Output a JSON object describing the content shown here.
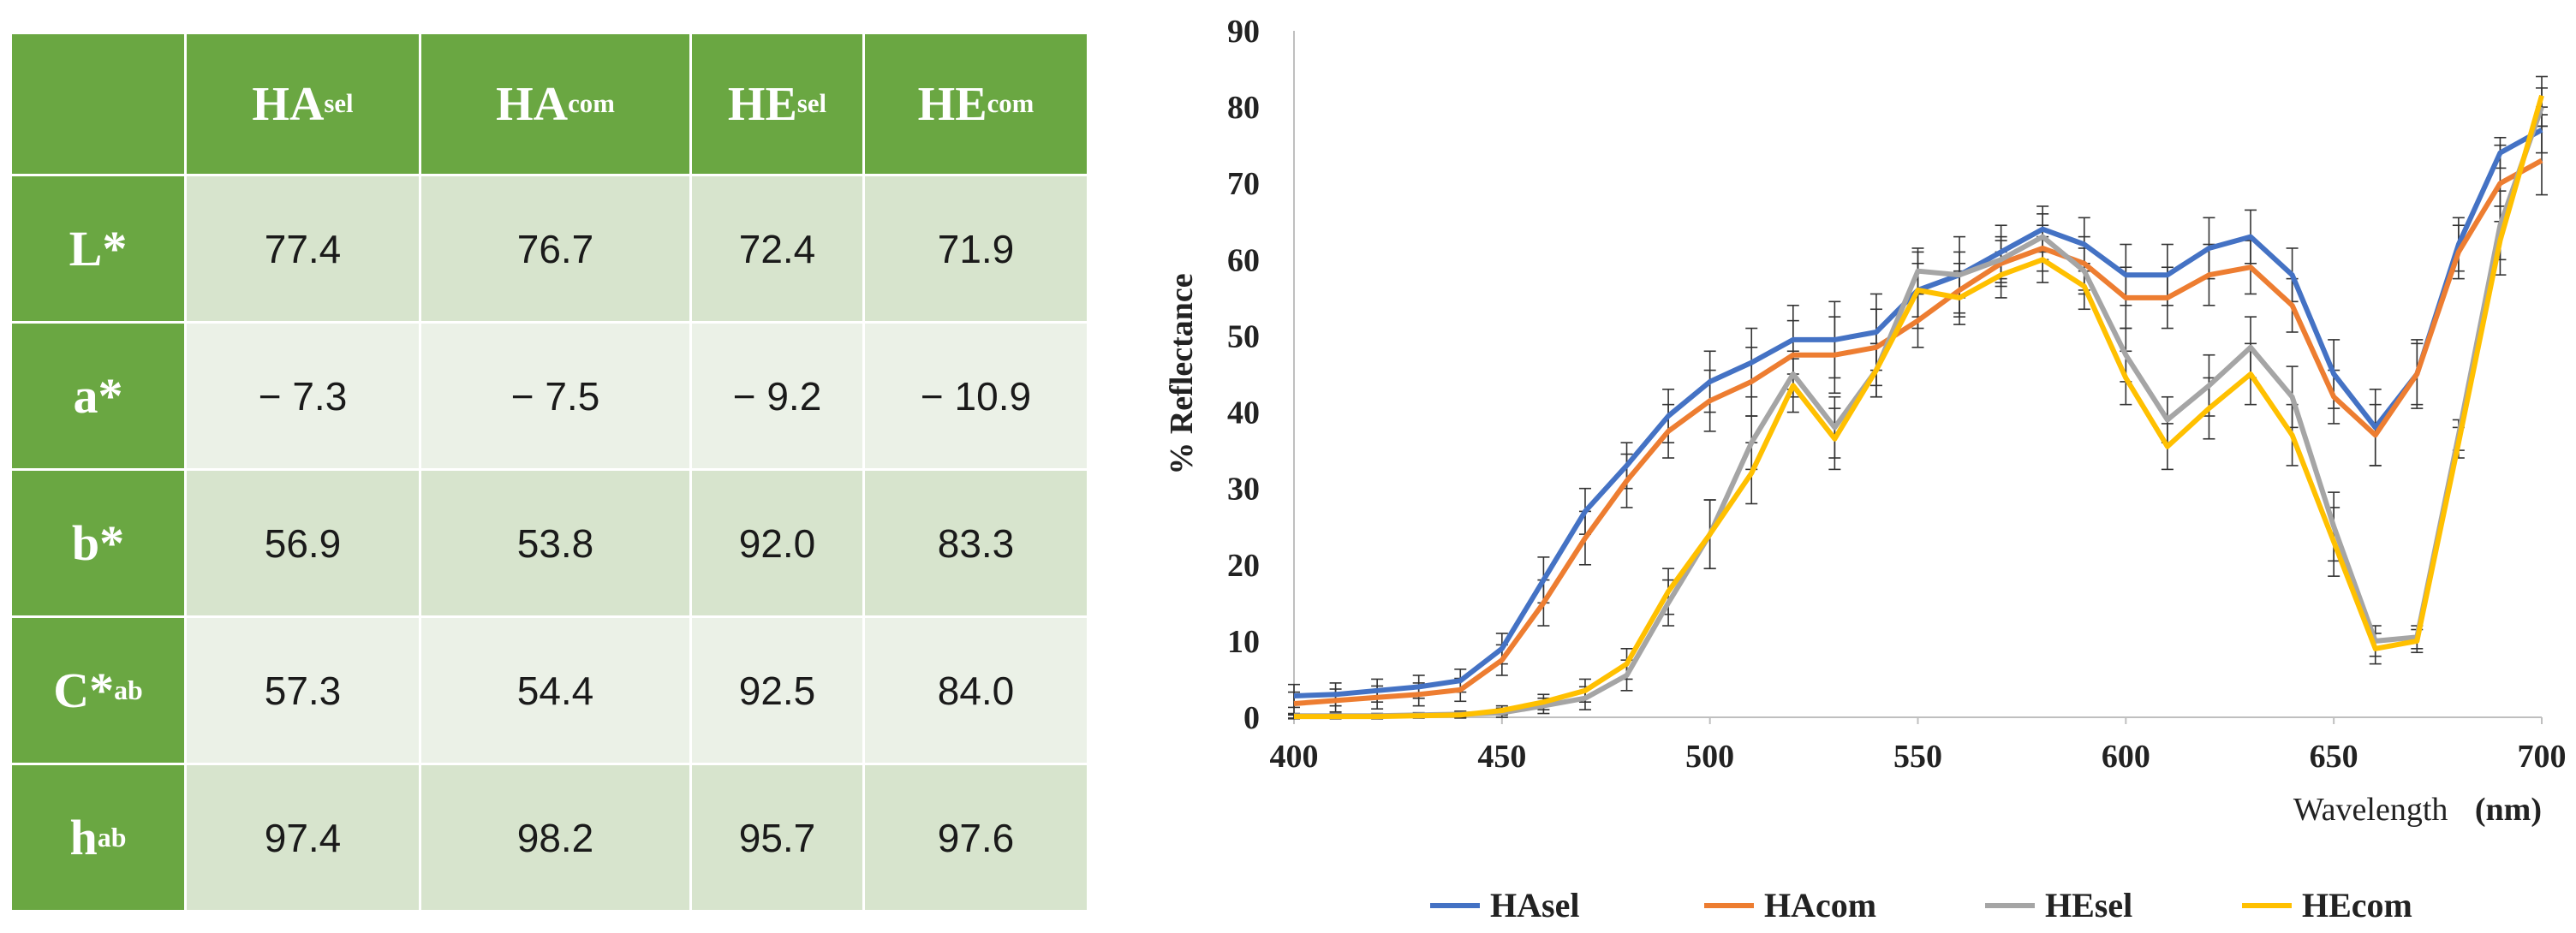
{
  "table": {
    "headers": [
      {
        "main": "HA",
        "sub": "sel"
      },
      {
        "main": "HA",
        "sub": "com"
      },
      {
        "main": "HE",
        "sub": "sel"
      },
      {
        "main": "HE",
        "sub": "com"
      }
    ],
    "rows": [
      {
        "main": "L*",
        "sub": "",
        "values": [
          "77.4",
          "76.7",
          "72.4",
          "71.9"
        ]
      },
      {
        "main": "a*",
        "sub": "",
        "values": [
          "− 7.3",
          "− 7.5",
          "− 9.2",
          "− 10.9"
        ]
      },
      {
        "main": "b*",
        "sub": "",
        "values": [
          "56.9",
          "53.8",
          "92.0",
          "83.3"
        ]
      },
      {
        "main": "C*",
        "sub": "ab",
        "values": [
          "57.3",
          "54.4",
          "92.5",
          "84.0"
        ]
      },
      {
        "main": "h",
        "sub": "ab",
        "values": [
          "97.4",
          "98.2",
          "95.7",
          "97.6"
        ]
      }
    ]
  },
  "chart_data": {
    "type": "line",
    "title": "",
    "xlabel": "Wavelength",
    "xlabel_unit": "(nm)",
    "ylabel": "% Reflectance",
    "xlim": [
      400,
      700
    ],
    "ylim": [
      0,
      90
    ],
    "xticks": [
      400,
      450,
      500,
      550,
      600,
      650,
      700
    ],
    "yticks": [
      0,
      10,
      20,
      30,
      40,
      50,
      60,
      70,
      80,
      90
    ],
    "x": [
      400,
      410,
      420,
      430,
      440,
      450,
      460,
      470,
      480,
      490,
      500,
      510,
      520,
      530,
      540,
      550,
      560,
      570,
      580,
      590,
      600,
      610,
      620,
      630,
      640,
      650,
      660,
      670,
      680,
      690,
      700
    ],
    "series": [
      {
        "name": "HAsel",
        "color": "#4472c4",
        "values": [
          2.8,
          3.0,
          3.5,
          4.0,
          4.8,
          9.0,
          18.0,
          27.0,
          33.0,
          39.5,
          44.0,
          46.5,
          49.5,
          49.5,
          50.5,
          56.0,
          58.0,
          61.0,
          64.0,
          62.0,
          58.0,
          58.0,
          61.5,
          63.0,
          58.0,
          45.0,
          38.0,
          45.0,
          62.0,
          74.0,
          77.0
        ],
        "errors": [
          1.5,
          1.5,
          1.5,
          1.5,
          1.5,
          2.0,
          3.0,
          3.0,
          3.0,
          3.5,
          4.0,
          4.5,
          4.5,
          5.0,
          5.0,
          5.0,
          5.0,
          3.5,
          3.0,
          3.5,
          4.0,
          4.0,
          4.0,
          3.5,
          3.5,
          4.5,
          5.0,
          4.5,
          3.5,
          2.0,
          3.0
        ]
      },
      {
        "name": "HAcom",
        "color": "#ed7d31",
        "values": [
          1.8,
          2.2,
          2.6,
          3.0,
          3.6,
          7.5,
          15.0,
          23.5,
          31.0,
          37.5,
          41.5,
          44.0,
          47.5,
          47.5,
          48.5,
          52.0,
          56.0,
          59.5,
          61.5,
          59.5,
          55.0,
          55.0,
          58.0,
          59.0,
          54.0,
          42.0,
          37.0,
          45.0,
          61.0,
          70.0,
          73.0
        ],
        "errors": [
          1.5,
          1.5,
          1.5,
          1.5,
          1.5,
          2.0,
          3.0,
          3.5,
          3.5,
          3.5,
          4.0,
          4.5,
          4.5,
          5.0,
          5.0,
          3.5,
          3.5,
          3.0,
          3.0,
          3.5,
          4.0,
          4.0,
          4.0,
          3.5,
          3.5,
          3.5,
          4.0,
          4.0,
          3.5,
          5.0,
          4.5
        ]
      },
      {
        "name": "HEsel",
        "color": "#a5a5a5",
        "values": [
          0.2,
          0.2,
          0.2,
          0.3,
          0.4,
          0.6,
          1.5,
          2.5,
          5.5,
          15.0,
          24.0,
          36.0,
          45.0,
          38.0,
          45.5,
          58.5,
          58.0,
          60.0,
          63.0,
          58.5,
          47.5,
          39.0,
          43.5,
          48.5,
          42.0,
          25.0,
          10.0,
          10.5,
          37.0,
          64.5,
          80.0
        ],
        "errors": [
          0.3,
          0.3,
          0.3,
          0.3,
          0.4,
          0.6,
          1.0,
          1.5,
          2.0,
          3.0,
          4.5,
          3.5,
          3.0,
          4.0,
          3.5,
          3.0,
          3.0,
          3.0,
          3.0,
          3.0,
          3.5,
          3.0,
          4.0,
          4.0,
          4.0,
          4.5,
          2.0,
          1.5,
          2.0,
          4.5,
          2.5
        ]
      },
      {
        "name": "HEcom",
        "color": "#ffc000",
        "values": [
          0.1,
          0.1,
          0.1,
          0.2,
          0.3,
          0.9,
          2.0,
          3.5,
          7.0,
          16.5,
          24.0,
          32.0,
          43.5,
          36.5,
          45.5,
          56.0,
          55.0,
          58.0,
          60.0,
          56.5,
          44.5,
          35.5,
          40.5,
          45.0,
          37.0,
          23.0,
          9.0,
          10.0,
          36.0,
          62.5,
          81.5
        ],
        "errors": [
          0.3,
          0.3,
          0.3,
          0.3,
          0.4,
          0.6,
          1.0,
          1.5,
          2.0,
          3.0,
          4.5,
          4.0,
          3.5,
          4.0,
          3.5,
          3.5,
          3.5,
          3.0,
          3.0,
          3.0,
          3.5,
          3.0,
          4.0,
          4.0,
          4.0,
          4.5,
          2.0,
          1.5,
          2.0,
          4.5,
          2.5
        ]
      }
    ],
    "legend": "bottom",
    "grid": false
  }
}
